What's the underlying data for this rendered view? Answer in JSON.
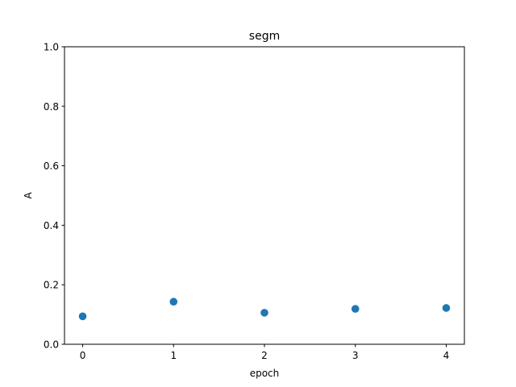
{
  "chart_data": {
    "type": "scatter",
    "title": "segm",
    "xlabel": "epoch",
    "ylabel": "A",
    "x": [
      0,
      1,
      2,
      3,
      4
    ],
    "series": [
      {
        "values": [
          0.094,
          0.143,
          0.106,
          0.119,
          0.122
        ],
        "color": "#1f77b4"
      }
    ],
    "xlim": [
      -0.2,
      4.2
    ],
    "ylim": [
      0.0,
      1.0
    ],
    "xticks": [
      "0",
      "1",
      "2",
      "3",
      "4"
    ],
    "yticks": [
      "0.0",
      "0.2",
      "0.4",
      "0.6",
      "0.8",
      "1.0"
    ],
    "grid": false,
    "legend": false
  }
}
